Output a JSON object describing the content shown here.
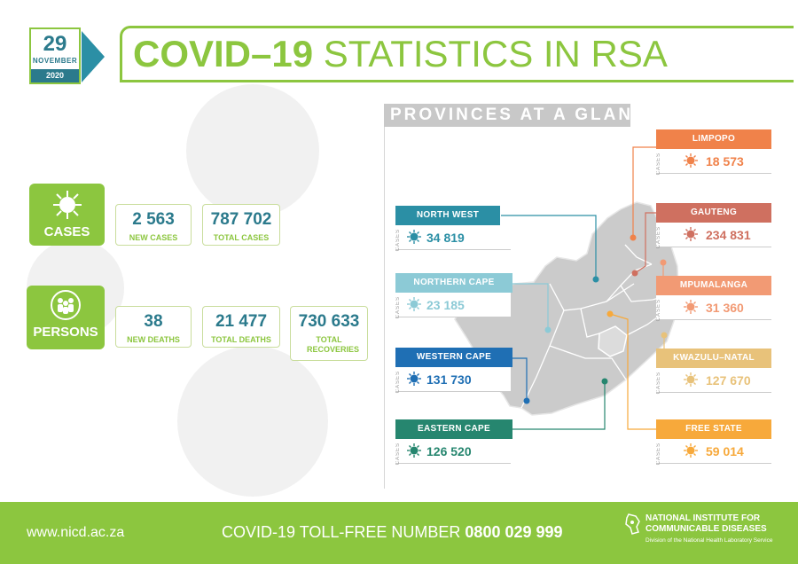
{
  "date": {
    "day": "29",
    "month": "NOVEMBER",
    "year": "2020"
  },
  "title": {
    "bold": "COVID–19",
    "light": "STATISTICS IN RSA"
  },
  "cases": {
    "label": "CASES",
    "new_value": "2 563",
    "new_label": "NEW CASES",
    "total_value": "787 702",
    "total_label": "TOTAL CASES"
  },
  "persons": {
    "label": "PERSONS",
    "new_deaths_value": "38",
    "new_deaths_label": "NEW DEATHS",
    "total_deaths_value": "21 477",
    "total_deaths_label": "TOTAL DEATHS",
    "recoveries_value": "730 633",
    "recoveries_label": "TOTAL RECOVERIES"
  },
  "provinces_title": "PROVINCES AT A GLANCE",
  "cases_tag": "CASES",
  "provinces": {
    "limpopo": {
      "name": "LIMPOPO",
      "value": "18 573",
      "color": "#f0824a"
    },
    "gauteng": {
      "name": "GAUTENG",
      "value": "234 831",
      "color": "#cf7060"
    },
    "mpumalanga": {
      "name": "MPUMALANGA",
      "value": "31 360",
      "color": "#f29a74"
    },
    "kwazulu_natal": {
      "name": "KWAZULU–NATAL",
      "value": "127 670",
      "color": "#e8c27a"
    },
    "free_state": {
      "name": "FREE STATE",
      "value": "59 014",
      "color": "#f7a93b"
    },
    "north_west": {
      "name": "NORTH WEST",
      "value": "34 819",
      "color": "#2b8fa5"
    },
    "northern_cape": {
      "name": "NORTHERN CAPE",
      "value": "23 185",
      "color": "#8ccad6"
    },
    "western_cape": {
      "name": "WESTERN CAPE",
      "value": "131 730",
      "color": "#1f6fb4"
    },
    "eastern_cape": {
      "name": "EASTERN CAPE",
      "value": "126 520",
      "color": "#26866f"
    }
  },
  "footer": {
    "url": "www.nicd.ac.za",
    "toll_label": "COVID-19 TOLL-FREE NUMBER",
    "toll_number": "0800 029 999",
    "org_name": "NATIONAL INSTITUTE FOR COMMUNICABLE DISEASES",
    "org_sub": "Division of the National Health Laboratory Service"
  },
  "colors": {
    "brand_green": "#8cc63f",
    "teal": "#2b7a8c"
  }
}
